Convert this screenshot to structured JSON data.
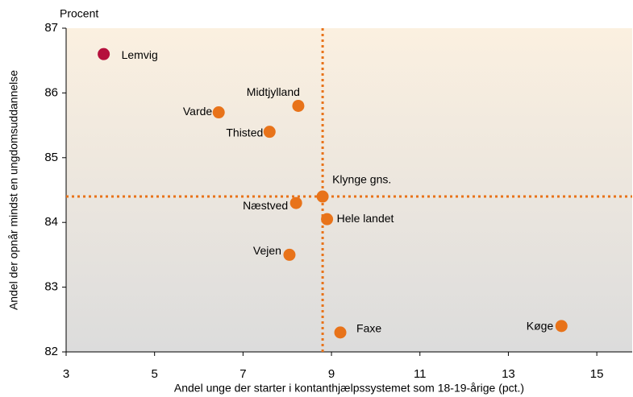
{
  "chart_data": {
    "type": "scatter",
    "unit_label": "Procent",
    "xlabel": "Andel unge der starter i kontanthjælpssystemet som 18-19-årige (pct.)",
    "ylabel": "Andel der opnår mindst en ungdomsuddannelse",
    "labels": [
      "Lemvig",
      "Midtjylland",
      "Varde",
      "Thisted",
      "Klynge gns.",
      "Næstved",
      "Hele landet",
      "Vejen",
      "Faxe",
      "Køge"
    ],
    "x": [
      3.85,
      8.25,
      6.45,
      7.6,
      8.8,
      8.2,
      8.9,
      8.05,
      9.2,
      14.2
    ],
    "y": [
      86.6,
      85.8,
      85.7,
      85.4,
      84.4,
      84.3,
      84.05,
      83.5,
      82.3,
      82.4
    ],
    "colors": [
      "#b5103c",
      "#e8731a",
      "#e8731a",
      "#e8731a",
      "#e8731a",
      "#e8731a",
      "#e8731a",
      "#e8731a",
      "#e8731a",
      "#e8731a"
    ],
    "reference_lines": {
      "x": 8.8,
      "y": 84.4,
      "color": "#e8731a"
    },
    "xlim": [
      3,
      15.8
    ],
    "xticks": [
      3,
      5,
      7,
      9,
      11,
      13,
      15
    ],
    "ylim": [
      82,
      87
    ],
    "yticks": [
      82,
      83,
      84,
      85,
      86,
      87
    ]
  }
}
